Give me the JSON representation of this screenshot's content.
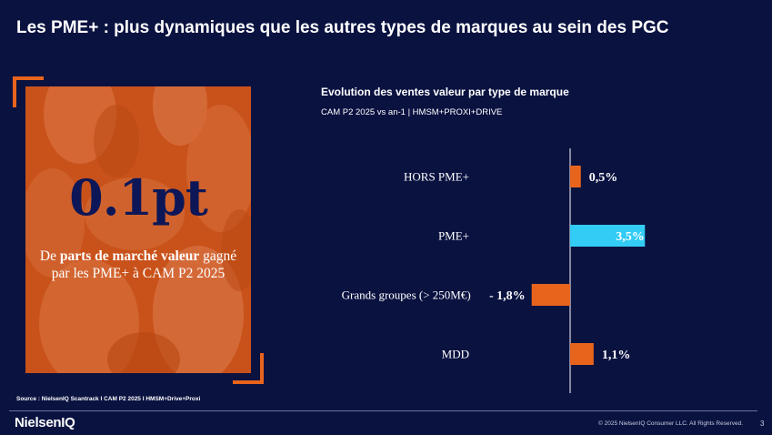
{
  "slide": {
    "title": "Les PME+ : plus dynamiques que les autres types de marques au sein des PGC"
  },
  "card": {
    "big_number": "0.1pt",
    "text_part1": "De ",
    "text_bold": "parts de marché valeur",
    "text_part2": " gagné par les PME+ à CAM P2 2025"
  },
  "colors": {
    "background": "#0a1240",
    "orange": "#e8641c",
    "cyan": "#33ccf5",
    "navy_text": "#0d1757"
  },
  "chart_data": {
    "type": "bar",
    "orientation": "horizontal",
    "title": "Evolution des ventes valeur par type de marque",
    "subtitle": "CAM P2 2025 vs an-1 | HMSM+PROXI+DRIVE",
    "categories": [
      "HORS PME+",
      "PME+",
      "Grands groupes (> 250M€)",
      "MDD"
    ],
    "values": [
      0.5,
      3.5,
      -1.8,
      1.1
    ],
    "value_labels": [
      "0,5%",
      "3,5%",
      "- 1,8%",
      "1,1%"
    ],
    "highlight": "PME+",
    "unit": "%"
  },
  "footer": {
    "source": "Source : NielsenIQ Scantrack I CAM P2 2025 I HMSM+Drive+Proxi",
    "logo": "NielsenIQ",
    "copyright": "© 2025 NielsenIQ Consumer LLC. All Rights Reserved.",
    "page_number": "3"
  }
}
